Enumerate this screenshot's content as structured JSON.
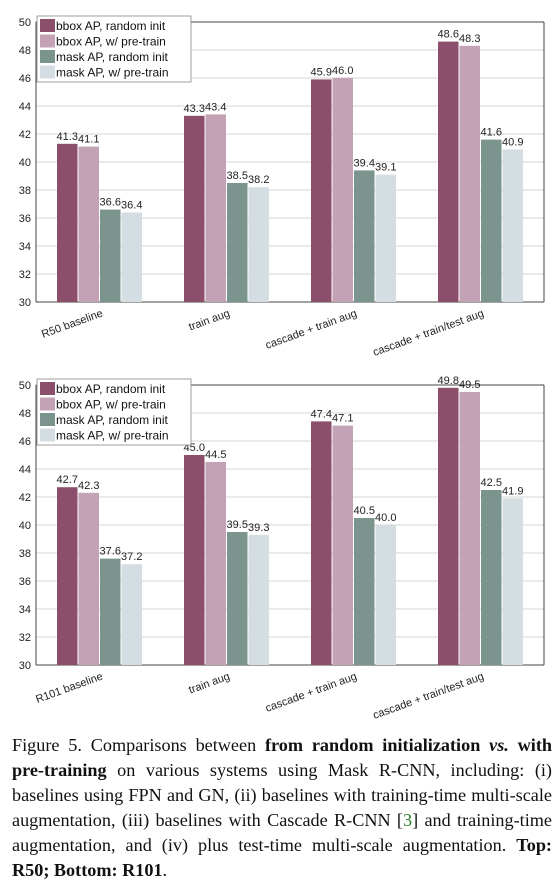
{
  "colors": {
    "bbox_random": "#8c4f6b",
    "bbox_pretrain": "#c3a2b5",
    "mask_random": "#7b948e",
    "mask_pretrain": "#d4dde1"
  },
  "chart_data": [
    {
      "type": "bar",
      "ylim": [
        30,
        50
      ],
      "yticks": [
        30,
        32,
        34,
        36,
        38,
        40,
        42,
        44,
        46,
        48,
        50
      ],
      "grid": true,
      "legend_position": "top-left",
      "categories": [
        "R50 baseline",
        "train aug",
        "cascade + train aug",
        "cascade + train/test aug"
      ],
      "series": [
        {
          "name": "bbox AP, random init",
          "values": [
            41.3,
            43.3,
            45.9,
            48.6
          ]
        },
        {
          "name": "bbox AP, w/ pre-train",
          "values": [
            41.1,
            43.4,
            46.0,
            48.3
          ]
        },
        {
          "name": "mask AP, random init",
          "values": [
            36.6,
            38.5,
            39.4,
            41.6
          ]
        },
        {
          "name": "mask AP, w/ pre-train",
          "values": [
            36.4,
            38.2,
            39.1,
            40.9
          ]
        }
      ]
    },
    {
      "type": "bar",
      "ylim": [
        30,
        50
      ],
      "yticks": [
        30,
        32,
        34,
        36,
        38,
        40,
        42,
        44,
        46,
        48,
        50
      ],
      "grid": true,
      "legend_position": "top-left",
      "categories": [
        "R101 baseline",
        "train aug",
        "cascade + train aug",
        "cascade + train/test aug"
      ],
      "series": [
        {
          "name": "bbox AP, random init",
          "values": [
            42.7,
            45.0,
            47.4,
            49.8
          ]
        },
        {
          "name": "bbox AP, w/ pre-train",
          "values": [
            42.3,
            44.5,
            47.1,
            49.5
          ]
        },
        {
          "name": "mask AP, random init",
          "values": [
            37.6,
            39.5,
            40.5,
            42.5
          ]
        },
        {
          "name": "mask AP, w/ pre-train",
          "values": [
            37.2,
            39.3,
            40.0,
            41.9
          ]
        }
      ]
    }
  ],
  "caption": {
    "fig_label": "Figure 5.",
    "t1": " Comparisons between ",
    "b1": "from random initialization ",
    "vs": "vs.",
    "b2": " with pre-training",
    "t2": " on various systems using Mask R-CNN, including: (i) baselines using FPN and GN, (ii) baselines with training-time multi-scale augmentation, (iii) baselines with Cascade R-CNN [",
    "cite": "3",
    "t3": "] and training-time augmentation, and (iv) plus test-time multi-scale augmentation. ",
    "b3": "Top: R50; Bottom: R101",
    "t4": "."
  }
}
